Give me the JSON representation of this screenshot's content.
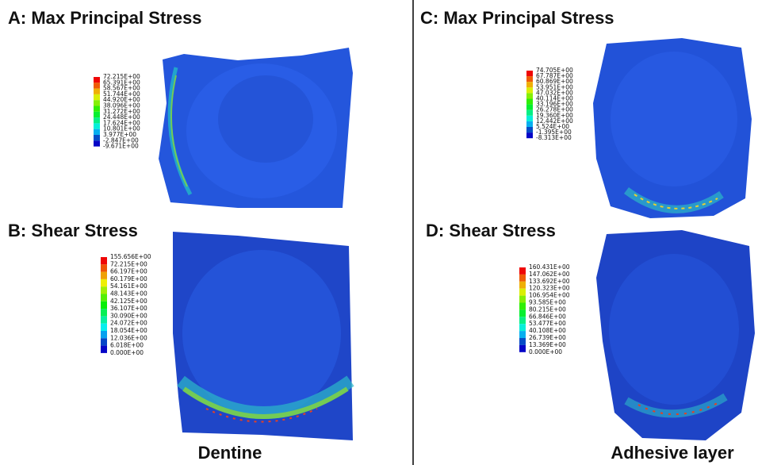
{
  "panels": [
    {
      "title": "A: Max Principal Stress",
      "legend": [
        "72.215E+00",
        "65.391E+00",
        "58.567E+00",
        "51.744E+00",
        "44.920E+00",
        "38.096E+00",
        "31.272E+00",
        "24.448E+00",
        "17.624E+00",
        "10.801E+00",
        "3.977E+00",
        "-2.847E+00",
        "-9.671E+00"
      ]
    },
    {
      "title": "B: Shear Stress",
      "legend": [
        "155.656E+00",
        "72.215E+00",
        "66.197E+00",
        "60.179E+00",
        "54.161E+00",
        "48.143E+00",
        "42.125E+00",
        "36.107E+00",
        "30.090E+00",
        "24.072E+00",
        "18.054E+00",
        "12.036E+00",
        "6.018E+00",
        "0.000E+00"
      ]
    },
    {
      "title": "C: Max Principal Stress",
      "legend": [
        "74.705E+00",
        "67.787E+00",
        "60.869E+00",
        "53.951E+00",
        "47.032E+00",
        "40.114E+00",
        "33.196E+00",
        "26.278E+00",
        "19.360E+00",
        "12.442E+00",
        "5.524E+00",
        "-1.395E+00",
        "-8.313E+00"
      ]
    },
    {
      "title": "D: Shear Stress",
      "legend": [
        "160.431E+00",
        "147.062E+00",
        "133.692E+00",
        "120.323E+00",
        "106.954E+00",
        "93.585E+00",
        "80.215E+00",
        "66.846E+00",
        "53.477E+00",
        "40.108E+00",
        "26.739E+00",
        "13.369E+00",
        "0.000E+00"
      ]
    }
  ],
  "captions": [
    "Dentine",
    "Adhesive layer"
  ]
}
